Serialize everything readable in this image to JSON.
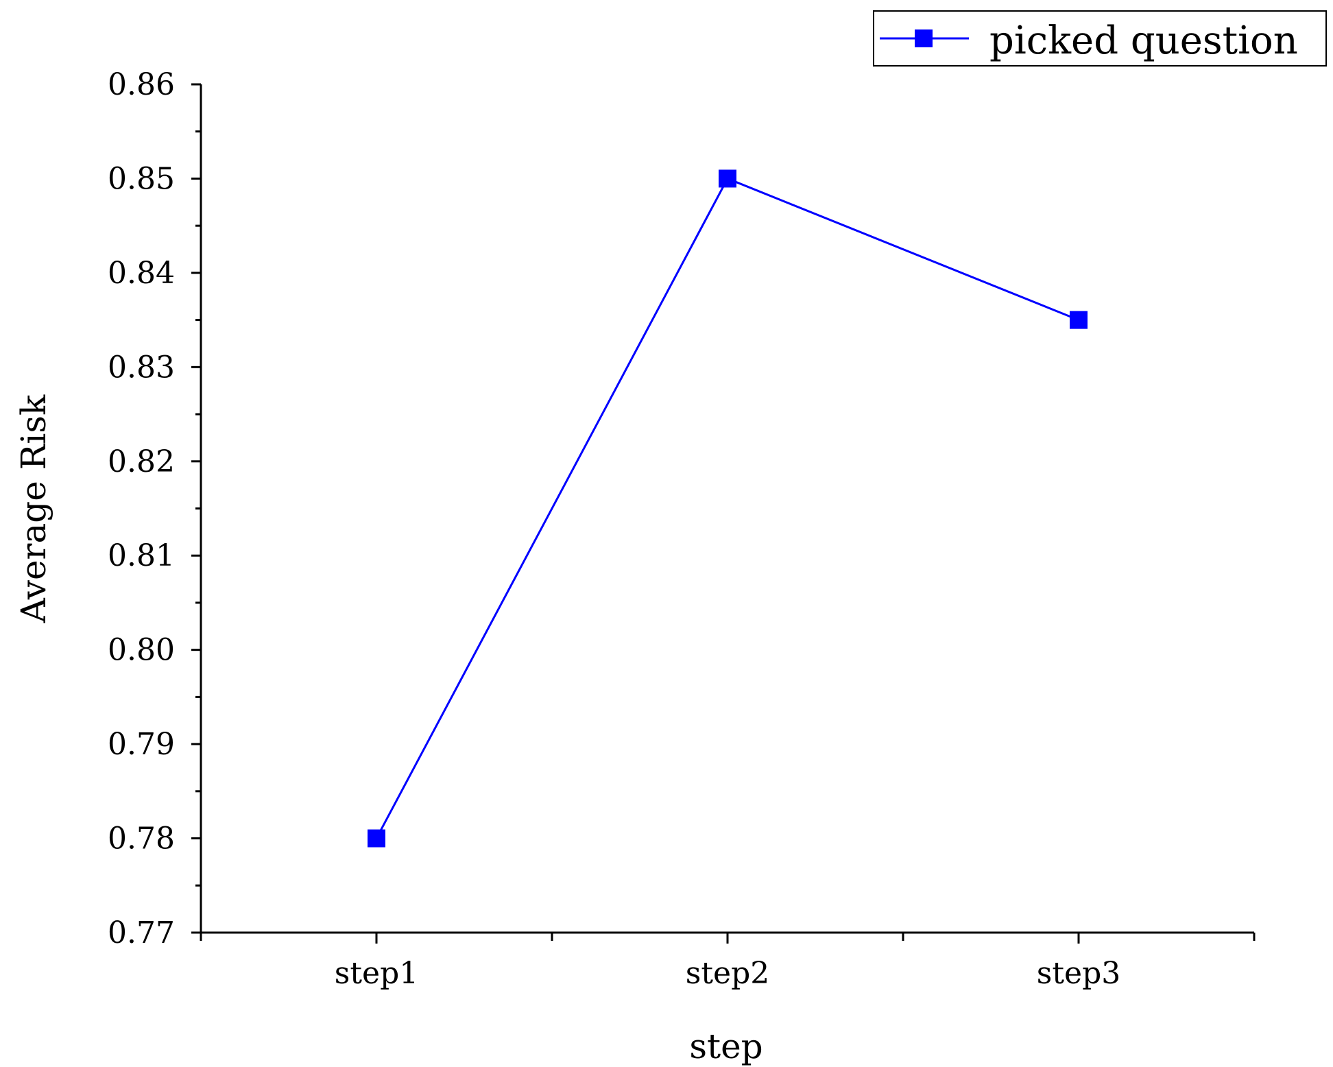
{
  "chart_data": {
    "type": "line",
    "categories": [
      "step1",
      "step2",
      "step3"
    ],
    "series": [
      {
        "name": "picked question",
        "values": [
          0.78,
          0.85,
          0.835
        ],
        "color": "#0000ff",
        "marker": "square"
      }
    ],
    "xlabel": "step",
    "ylabel": "Average Risk",
    "ylim": [
      0.77,
      0.86
    ],
    "yticks": [
      "0.77",
      "0.78",
      "0.79",
      "0.80",
      "0.81",
      "0.82",
      "0.83",
      "0.84",
      "0.85",
      "0.86"
    ],
    "grid": false,
    "legend_position": "top-right"
  }
}
